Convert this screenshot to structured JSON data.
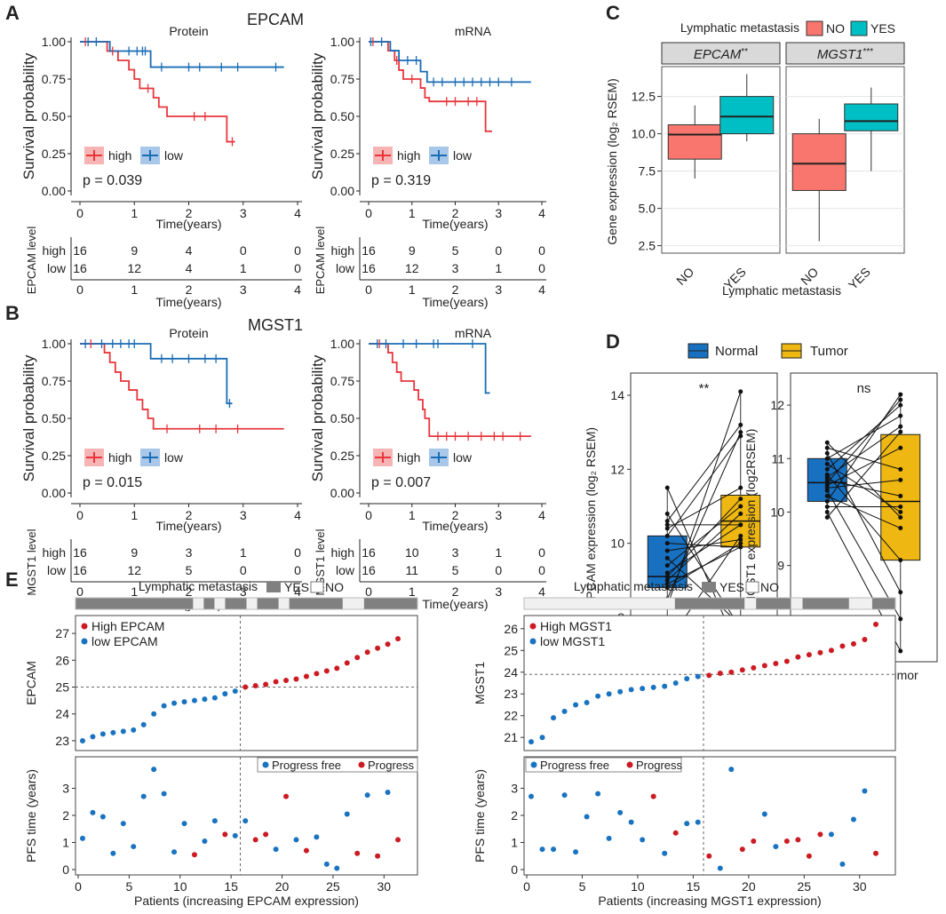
{
  "chart_data": {
    "colors": {
      "high": "#e8363c",
      "low": "#1a6cb5",
      "high_fill": "#f7b4b4",
      "low_fill": "#a9c7e8",
      "no": "#f8766d",
      "yes": "#00bfc4",
      "normal": "#1770c0",
      "tumor": "#eeb711",
      "dot_red": "#cc1b22",
      "dot_blue": "#1a73c0",
      "bar_yes": "#808080",
      "bar_no": "#f0f0f0"
    },
    "panel_letters": {
      "A": "A",
      "B": "B",
      "C": "C",
      "D": "D",
      "E": "E"
    },
    "km": [
      {
        "gene": "EPCAM",
        "row_label": "EPCAM level",
        "title": "Protein",
        "p": "p = 0.039",
        "high": [
          [
            0,
            1
          ],
          [
            0.5,
            0.9375
          ],
          [
            0.7,
            0.875
          ],
          [
            0.9,
            0.8125
          ],
          [
            1.0,
            0.75
          ],
          [
            1.1,
            0.6875
          ],
          [
            1.35,
            0.625
          ],
          [
            1.45,
            0.5625
          ],
          [
            1.6,
            0.5
          ],
          [
            2.7,
            0.33
          ],
          [
            2.85,
            0.33
          ]
        ],
        "high_cens": [
          0.1,
          0.6,
          1.25,
          2.1,
          2.3,
          2.8
        ],
        "low": [
          [
            0,
            1
          ],
          [
            0.55,
            0.9375
          ],
          [
            0.8,
            0.9375
          ],
          [
            1.3,
            0.83
          ],
          [
            3.75,
            0.83
          ]
        ],
        "low_cens": [
          0.15,
          0.3,
          0.9,
          1.05,
          1.15,
          1.2,
          1.5,
          2.0,
          2.2,
          2.6,
          2.9,
          3.6
        ],
        "at_risk": {
          "high": [
            "16",
            "9",
            "4",
            "0",
            "0"
          ],
          "low": [
            "16",
            "12",
            "4",
            "1",
            "0"
          ]
        }
      },
      {
        "gene": "EPCAM",
        "row_label": "EPCAM level",
        "title": "mRNA",
        "p": "p = 0.319",
        "high": [
          [
            0,
            1
          ],
          [
            0.45,
            0.94
          ],
          [
            0.6,
            0.875
          ],
          [
            0.7,
            0.81
          ],
          [
            0.8,
            0.75
          ],
          [
            1.2,
            0.69
          ],
          [
            1.3,
            0.625
          ],
          [
            1.4,
            0.6
          ],
          [
            2.7,
            0.4
          ],
          [
            2.85,
            0.4
          ]
        ],
        "high_cens": [
          0.1,
          0.65,
          1.0,
          1.8,
          2.0,
          2.3,
          2.5
        ],
        "low": [
          [
            0,
            1
          ],
          [
            0.5,
            0.94
          ],
          [
            0.7,
            0.875
          ],
          [
            1.2,
            0.8
          ],
          [
            1.35,
            0.73
          ],
          [
            3.75,
            0.73
          ]
        ],
        "low_cens": [
          0.05,
          0.3,
          0.9,
          1.1,
          1.5,
          1.7,
          2.0,
          2.2,
          2.4,
          2.6,
          2.8,
          3.0,
          3.3
        ],
        "at_risk": {
          "high": [
            "16",
            "9",
            "5",
            "0",
            "0"
          ],
          "low": [
            "16",
            "12",
            "3",
            "1",
            "0"
          ]
        }
      },
      {
        "gene": "MGST1",
        "row_label": "MGST1 level",
        "title": "Protein",
        "p": "p = 0.015",
        "high": [
          [
            0,
            1
          ],
          [
            0.45,
            0.94
          ],
          [
            0.55,
            0.875
          ],
          [
            0.65,
            0.81
          ],
          [
            0.75,
            0.75
          ],
          [
            0.9,
            0.69
          ],
          [
            1.05,
            0.625
          ],
          [
            1.15,
            0.56
          ],
          [
            1.25,
            0.5
          ],
          [
            1.35,
            0.43
          ],
          [
            3.75,
            0.43
          ]
        ],
        "high_cens": [
          0.2,
          1.6,
          2.2,
          2.5,
          2.9
        ],
        "low": [
          [
            0,
            1
          ],
          [
            1.3,
            0.9
          ],
          [
            2.7,
            0.6
          ],
          [
            2.8,
            0.6
          ]
        ],
        "low_cens": [
          0.1,
          0.4,
          0.6,
          0.75,
          0.9,
          1.0,
          1.5,
          1.7,
          2.0,
          2.3,
          2.5,
          2.75
        ],
        "at_risk": {
          "high": [
            "16",
            "9",
            "3",
            "1",
            "0"
          ],
          "low": [
            "16",
            "12",
            "5",
            "0",
            "0"
          ]
        }
      },
      {
        "gene": "MGST1",
        "row_label": "MGST1 level",
        "title": "mRNA",
        "p": "p = 0.007",
        "high": [
          [
            0,
            1
          ],
          [
            0.45,
            0.94
          ],
          [
            0.55,
            0.875
          ],
          [
            0.65,
            0.81
          ],
          [
            0.75,
            0.75
          ],
          [
            1.05,
            0.69
          ],
          [
            1.15,
            0.625
          ],
          [
            1.25,
            0.56
          ],
          [
            1.3,
            0.5
          ],
          [
            1.4,
            0.38
          ],
          [
            3.75,
            0.38
          ]
        ],
        "high_cens": [
          0.25,
          1.6,
          1.8,
          2.0,
          2.3,
          2.6,
          2.9,
          3.1,
          3.5
        ],
        "low": [
          [
            0,
            1
          ],
          [
            2.7,
            0.67
          ],
          [
            2.8,
            0.67
          ]
        ],
        "low_cens": [
          0.2,
          0.4,
          0.8,
          1.1,
          1.5,
          1.6,
          2.4
        ],
        "at_risk": {
          "high": [
            "16",
            "10",
            "3",
            "1",
            "0"
          ],
          "low": [
            "16",
            "11",
            "5",
            "0",
            "0"
          ]
        }
      }
    ],
    "km_common": {
      "ylabel": "Survival probability",
      "xlabel": "Time(years)",
      "legend_high": "high",
      "legend_low": "low",
      "yticks": [
        "0.00",
        "0.25",
        "0.50",
        "0.75",
        "1.00"
      ],
      "xticks": [
        "0",
        "1",
        "2",
        "3",
        "4"
      ],
      "risk_high": "high",
      "risk_low": "low"
    },
    "titles": {
      "epcam": "EPCAM",
      "mgst1": "MGST1"
    },
    "boxC": {
      "legend_title": "Lymphatic metastasis",
      "no": "NO",
      "yes": "YES",
      "xlabel": "Lymphatic metastasis",
      "ylabel": "Gene expression (log₂ RSEM)",
      "yticks": [
        "2.5",
        "5.0",
        "7.5",
        "10.0",
        "12.5"
      ],
      "facets": [
        {
          "name": "EPCAM",
          "sig": "**",
          "boxes": [
            {
              "cat": "NO",
              "min": 7.0,
              "q1": 8.3,
              "med": 9.95,
              "q3": 10.6,
              "max": 11.9
            },
            {
              "cat": "YES",
              "min": 9.5,
              "q1": 10.0,
              "med": 11.15,
              "q3": 12.5,
              "max": 14.0
            }
          ]
        },
        {
          "name": "MGST1",
          "sig": "***",
          "boxes": [
            {
              "cat": "NO",
              "min": 2.8,
              "q1": 6.2,
              "med": 8.0,
              "q3": 10.0,
              "max": 11.0
            },
            {
              "cat": "YES",
              "min": 7.5,
              "q1": 10.2,
              "med": 10.85,
              "q3": 12.0,
              "max": 13.1
            }
          ]
        }
      ]
    },
    "boxD": {
      "normal": "Normal",
      "tumor": "Tumor",
      "panels": [
        {
          "ylabel": "EPCAM expression (log₂ RSEM)",
          "sig": "**",
          "yticks": [
            "8",
            "10",
            "12",
            "14"
          ],
          "ymin": 6.8,
          "ymax": 14.6,
          "normal": {
            "min": 7.3,
            "q1": 8.8,
            "med": 9.1,
            "q3": 10.2,
            "max": 11.5
          },
          "tumor": {
            "min": 7.0,
            "q1": 9.9,
            "med": 10.6,
            "q3": 11.3,
            "max": 14.1
          },
          "pairs": [
            [
              7.3,
              10.2
            ],
            [
              8.5,
              13.0
            ],
            [
              8.8,
              10.0
            ],
            [
              8.9,
              9.9
            ],
            [
              9.0,
              10.8
            ],
            [
              9.1,
              11.2
            ],
            [
              9.2,
              10.5
            ],
            [
              9.4,
              11.0
            ],
            [
              9.8,
              10.1
            ],
            [
              10.0,
              9.9
            ],
            [
              10.2,
              12.9
            ],
            [
              10.4,
              11.5
            ],
            [
              10.5,
              10.5
            ],
            [
              10.8,
              7.7
            ],
            [
              11.5,
              7.0
            ],
            [
              8.3,
              14.1
            ],
            [
              9.6,
              7.8
            ],
            [
              10.6,
              13.2
            ]
          ]
        },
        {
          "ylabel": "MGST1 expression (log2RSEM)",
          "sig": "ns",
          "yticks": [
            "8",
            "9",
            "10",
            "11",
            "12"
          ],
          "ymin": 7.2,
          "ymax": 12.6,
          "normal": {
            "min": 9.9,
            "q1": 10.2,
            "med": 10.55,
            "q3": 11.0,
            "max": 11.3
          },
          "tumor": {
            "min": 7.4,
            "q1": 9.1,
            "med": 10.2,
            "q3": 11.45,
            "max": 12.2
          },
          "pairs": [
            [
              9.9,
              11.5
            ],
            [
              10.0,
              7.4
            ],
            [
              10.1,
              10.1
            ],
            [
              10.2,
              12.2
            ],
            [
              10.3,
              9.7
            ],
            [
              10.4,
              8.0
            ],
            [
              10.5,
              11.2
            ],
            [
              10.6,
              10.3
            ],
            [
              10.7,
              9.1
            ],
            [
              10.8,
              12.0
            ],
            [
              10.9,
              10.0
            ],
            [
              11.0,
              11.8
            ],
            [
              11.1,
              8.5
            ],
            [
              11.2,
              10.8
            ],
            [
              11.3,
              9.9
            ],
            [
              10.55,
              12.1
            ],
            [
              10.45,
              10.6
            ],
            [
              10.65,
              11.6
            ]
          ]
        }
      ]
    },
    "panelE": [
      {
        "title": "Lymphatic metastasis",
        "yes": "YES",
        "no": "NO",
        "ylabel": "EPCAM",
        "ylabel2": "PFS time (years)",
        "xlabel": "Patients (increasing EPCAM expression)",
        "high_label": "High EPCAM",
        "low_label": "low EPCAM",
        "pf_label": "Progress free",
        "prog_label": "Progress",
        "bar": [
          1,
          1,
          1,
          1,
          1,
          1,
          1,
          1,
          1,
          1,
          1,
          0,
          1,
          0,
          1,
          1,
          0,
          1,
          1,
          0,
          1,
          1,
          1,
          1,
          1,
          0,
          0,
          1,
          1,
          1,
          1,
          1
        ],
        "yticks": [
          "23",
          "24",
          "25",
          "26",
          "27"
        ],
        "ymin": 22.8,
        "ymax": 27.5,
        "cut": 25.0,
        "expr": [
          23.0,
          23.15,
          23.25,
          23.3,
          23.35,
          23.4,
          23.6,
          24.0,
          24.3,
          24.4,
          24.45,
          24.5,
          24.55,
          24.6,
          24.75,
          24.85,
          25.0,
          25.05,
          25.1,
          25.2,
          25.25,
          25.3,
          25.4,
          25.5,
          25.6,
          25.7,
          25.9,
          26.1,
          26.3,
          26.45,
          26.6,
          26.8
        ],
        "pfs": [
          1.15,
          2.1,
          1.95,
          0.6,
          1.7,
          0.85,
          2.7,
          3.7,
          2.8,
          0.65,
          1.7,
          0.55,
          1.05,
          1.8,
          1.3,
          1.25,
          1.8,
          1.1,
          1.3,
          0.75,
          2.7,
          1.1,
          0.7,
          1.2,
          0.2,
          0.05,
          2.05,
          0.6,
          2.75,
          0.5,
          2.85,
          1.1
        ],
        "prog": [
          0,
          0,
          0,
          0,
          0,
          0,
          0,
          0,
          0,
          0,
          0,
          1,
          0,
          0,
          1,
          0,
          0,
          1,
          1,
          0,
          1,
          0,
          1,
          0,
          0,
          0,
          0,
          1,
          0,
          1,
          0,
          1
        ],
        "pfs_yticks": [
          "0",
          "1",
          "2",
          "3"
        ],
        "xticks": [
          "0",
          "5",
          "10",
          "15",
          "20",
          "25",
          "30"
        ]
      },
      {
        "title": "Lymphatic metastasis",
        "yes": "YES",
        "no": "NO",
        "ylabel": "MGST1",
        "ylabel2": "PFS time (years)",
        "xlabel": "Patients (increasing MGST1 expression)",
        "high_label": "High MGST1",
        "low_label": "low MGST1",
        "pf_label": "Progress free",
        "prog_label": "Progress",
        "bar": [
          0,
          0,
          0,
          0,
          0,
          0,
          0,
          0,
          0,
          0,
          0,
          0,
          0,
          1,
          1,
          1,
          1,
          1,
          1,
          0,
          1,
          1,
          1,
          0,
          1,
          1,
          1,
          1,
          0,
          0,
          1,
          1
        ],
        "yticks": [
          "21",
          "22",
          "23",
          "24",
          "25",
          "26"
        ],
        "ymin": 20.6,
        "ymax": 26.4,
        "cut": 23.9,
        "expr": [
          20.8,
          21.0,
          21.9,
          22.2,
          22.5,
          22.6,
          22.9,
          23.0,
          23.1,
          23.2,
          23.25,
          23.3,
          23.35,
          23.5,
          23.7,
          23.8,
          23.85,
          23.95,
          24.0,
          24.1,
          24.2,
          24.3,
          24.4,
          24.5,
          24.7,
          24.8,
          24.9,
          25.0,
          25.2,
          25.3,
          25.5,
          26.2
        ],
        "pfs": [
          2.7,
          0.75,
          0.75,
          2.75,
          0.65,
          1.95,
          2.8,
          1.15,
          2.1,
          1.75,
          1.1,
          2.7,
          0.6,
          1.35,
          1.7,
          1.75,
          0.5,
          0.05,
          3.7,
          0.75,
          1.05,
          2.05,
          0.85,
          1.05,
          1.1,
          0.5,
          1.3,
          1.3,
          0.2,
          1.85,
          2.9,
          0.6
        ],
        "prog": [
          0,
          0,
          0,
          0,
          0,
          0,
          0,
          0,
          0,
          0,
          0,
          1,
          0,
          1,
          0,
          0,
          1,
          0,
          0,
          1,
          1,
          0,
          0,
          1,
          1,
          1,
          1,
          0,
          0,
          0,
          0,
          1
        ],
        "pfs_yticks": [
          "0",
          "1",
          "2",
          "3"
        ],
        "xticks": [
          "0",
          "5",
          "10",
          "15",
          "20",
          "25",
          "30"
        ]
      }
    ]
  }
}
